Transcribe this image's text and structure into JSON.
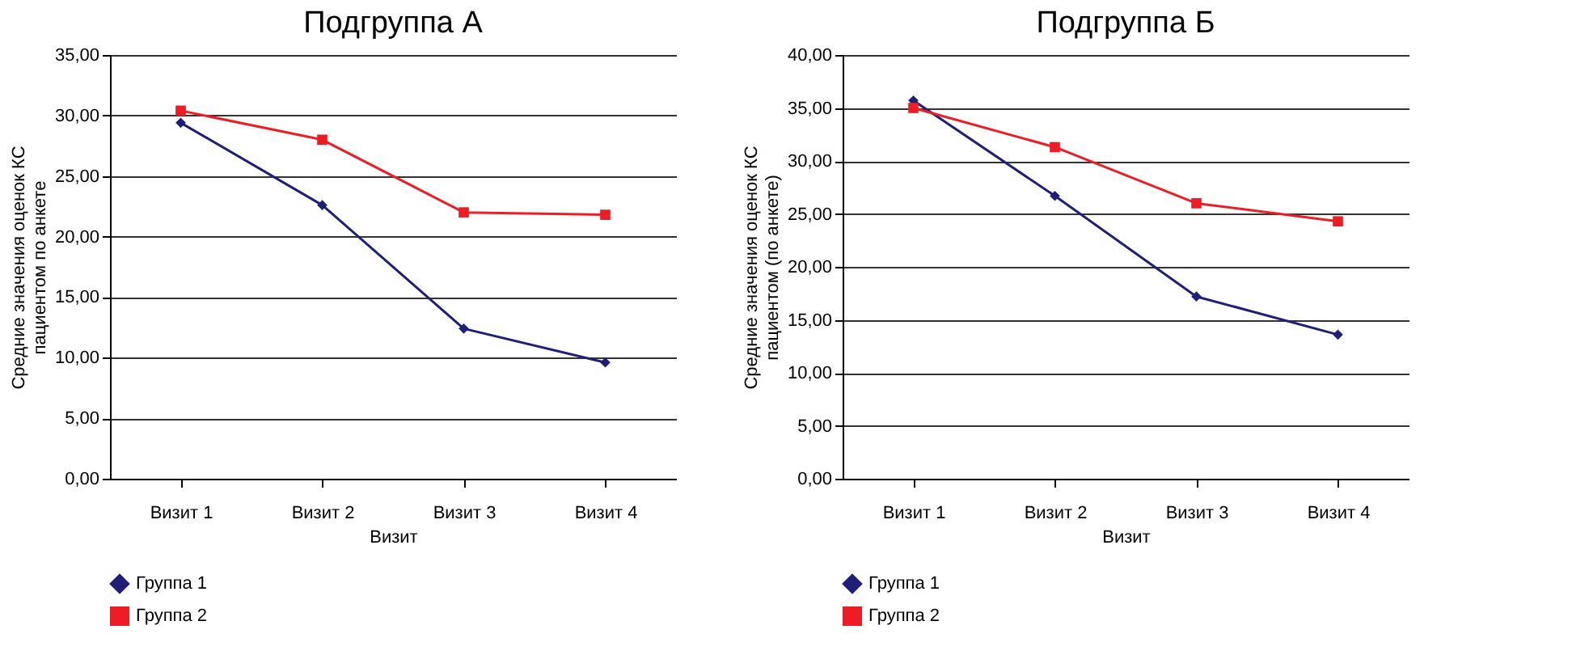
{
  "chart_data": [
    {
      "type": "line",
      "title": "Подгруппа А",
      "xlabel": "Визит",
      "ylabel": "Средние значения оценок КС\nпациентом по анкете",
      "categories": [
        "Визит 1",
        "Визит 2",
        "Визит 3",
        "Визит 4"
      ],
      "series": [
        {
          "name": "Группа 1",
          "color": "#1f1f7a",
          "marker": "diamond",
          "values": [
            29.4,
            22.6,
            12.4,
            9.6
          ]
        },
        {
          "name": "Группа 2",
          "color": "#ee1c24",
          "marker": "square",
          "values": [
            30.4,
            28.0,
            22.0,
            21.8
          ]
        }
      ],
      "ylim": [
        0,
        35
      ],
      "yticks": [
        {
          "value": 0,
          "label": "0,00"
        },
        {
          "value": 5,
          "label": "5,00"
        },
        {
          "value": 10,
          "label": "10,00"
        },
        {
          "value": 15,
          "label": "15,00"
        },
        {
          "value": 20,
          "label": "20,00"
        },
        {
          "value": 25,
          "label": "25,00"
        },
        {
          "value": 30,
          "label": "30,00"
        },
        {
          "value": 35,
          "label": "35,00"
        }
      ],
      "grid": "y",
      "legend": "bottom left",
      "line_style": "solid"
    },
    {
      "type": "line",
      "title": "Подгруппа Б",
      "xlabel": "Визит",
      "ylabel": "Средние значения оценок КС\nпациентом (по анкете)",
      "categories": [
        "Визит 1",
        "Визит 2",
        "Визит 3",
        "Визит 4"
      ],
      "series": [
        {
          "name": "Группа 1",
          "color": "#1f1f7a",
          "marker": "diamond",
          "values": [
            35.7,
            26.7,
            17.2,
            13.6
          ]
        },
        {
          "name": "Группа 2",
          "color": "#ee1c24",
          "marker": "square",
          "values": [
            35.0,
            31.3,
            26.0,
            24.3
          ]
        }
      ],
      "ylim": [
        0,
        40
      ],
      "yticks": [
        {
          "value": 0,
          "label": "0,00"
        },
        {
          "value": 5,
          "label": "5,00"
        },
        {
          "value": 10,
          "label": "10,00"
        },
        {
          "value": 15,
          "label": "15,00"
        },
        {
          "value": 20,
          "label": "20,00"
        },
        {
          "value": 25,
          "label": "25,00"
        },
        {
          "value": 30,
          "label": "30,00"
        },
        {
          "value": 35,
          "label": "35,00"
        },
        {
          "value": 40,
          "label": "40,00"
        }
      ],
      "grid": "y",
      "legend": "bottom left",
      "line_style": "solid"
    }
  ]
}
